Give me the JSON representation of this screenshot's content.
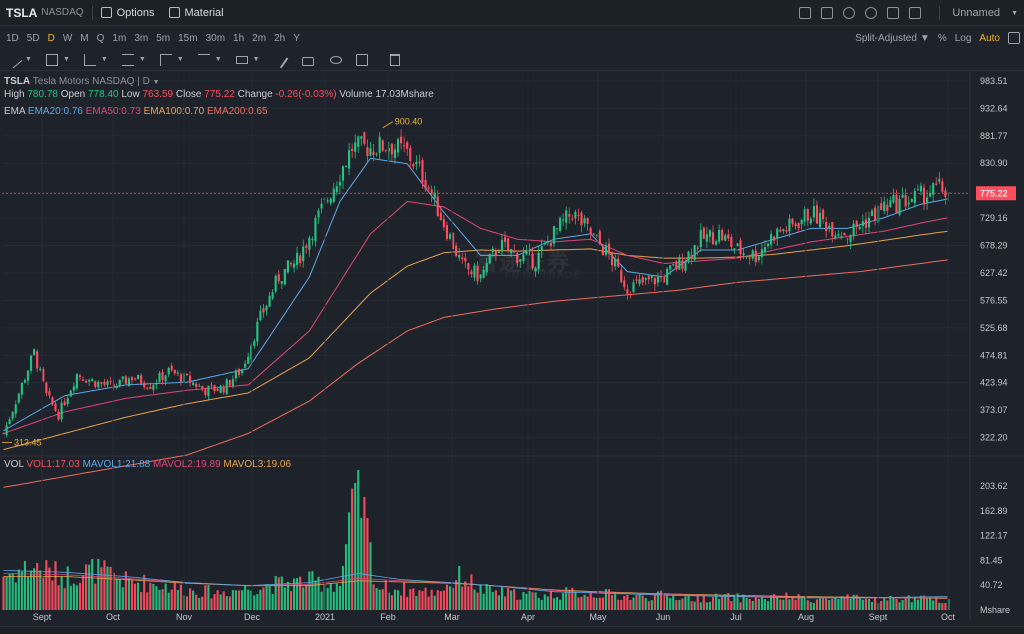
{
  "header": {
    "symbol": "TSLA",
    "exchange": "NASDAQ",
    "options_label": "Options",
    "material_label": "Material",
    "user_label": "Unnamed"
  },
  "periods": [
    "1D",
    "5D",
    "D",
    "W",
    "M",
    "Q",
    "1m",
    "3m",
    "5m",
    "15m",
    "30m",
    "1h",
    "2m",
    "2h",
    "Y"
  ],
  "active_period": "D",
  "period_right": {
    "adjust": "Split-Adjusted",
    "percent": "%",
    "log": "Log",
    "auto": "Auto"
  },
  "quote": {
    "title": "TSLA",
    "name": "Tesla Motors NASDAQ | D",
    "high_label": "High",
    "high": "780.78",
    "open_label": "Open",
    "open": "778.40",
    "low_label": "Low",
    "low": "763.59",
    "close_label": "Close",
    "close": "775.22",
    "change_label": "Change",
    "change": "-0.26(-0.03%)",
    "volume_label": "Volume",
    "volume": "17.03Mshare"
  },
  "ema": {
    "label": "EMA",
    "ema20": "EMA20:0.76",
    "ema50": "EMA50:0.73",
    "ema100": "EMA100:0.70",
    "ema200": "EMA200:0.65"
  },
  "vol": {
    "label": "VOL",
    "vol1": "VOL1:17.03",
    "mavol1": "MAVOL1:21.88",
    "mavol2": "MAVOL2:19.89",
    "mavol3": "MAVOL3:19.06"
  },
  "watermark": {
    "main": "富途证券",
    "sub": "FUTU TRADE"
  },
  "colors": {
    "up": "#26c281",
    "down": "#ff4d5e",
    "ema20": "#5aa9e6",
    "ema50": "#e0457b",
    "ema100": "#e8a34b",
    "ema200": "#ef6d5e",
    "accent": "#f0b429"
  },
  "chart_data": {
    "type": "candlestick",
    "price_axis_ticks": [
      "983.51",
      "932.64",
      "881.77",
      "830.90",
      "775.22",
      "729.16",
      "678.29",
      "627.42",
      "576.55",
      "525.68",
      "474.81",
      "423.94",
      "373.07",
      "322.20"
    ],
    "volume_axis_ticks": [
      "203.62",
      "162.89",
      "122.17",
      "81.45",
      "40.72",
      "Mshare"
    ],
    "x_ticks": [
      "Sept",
      "Oct",
      "Nov",
      "Dec",
      "2021",
      "Feb",
      "Mar",
      "Apr",
      "May",
      "Jun",
      "Jul",
      "Aug",
      "Sept",
      "Oct"
    ],
    "current_price": 775.22,
    "max_label": "900.40",
    "min_label": "313.45",
    "price_range": [
      290,
      1000
    ],
    "volume_range": [
      0,
      230
    ],
    "close_anchors": [
      [
        0,
        330
      ],
      [
        6,
        420
      ],
      [
        10,
        480
      ],
      [
        14,
        400
      ],
      [
        18,
        365
      ],
      [
        24,
        440
      ],
      [
        30,
        425
      ],
      [
        36,
        415
      ],
      [
        42,
        435
      ],
      [
        48,
        420
      ],
      [
        54,
        445
      ],
      [
        60,
        430
      ],
      [
        66,
        410
      ],
      [
        72,
        415
      ],
      [
        78,
        450
      ],
      [
        84,
        545
      ],
      [
        90,
        620
      ],
      [
        96,
        650
      ],
      [
        102,
        720
      ],
      [
        108,
        790
      ],
      [
        114,
        860
      ],
      [
        120,
        860
      ],
      [
        126,
        865
      ],
      [
        132,
        850
      ],
      [
        138,
        800
      ],
      [
        144,
        720
      ],
      [
        150,
        640
      ],
      [
        156,
        620
      ],
      [
        162,
        680
      ],
      [
        168,
        660
      ],
      [
        174,
        650
      ],
      [
        180,
        700
      ],
      [
        186,
        740
      ],
      [
        192,
        700
      ],
      [
        198,
        660
      ],
      [
        204,
        600
      ],
      [
        210,
        610
      ],
      [
        216,
        620
      ],
      [
        222,
        650
      ],
      [
        228,
        690
      ],
      [
        234,
        700
      ],
      [
        240,
        670
      ],
      [
        246,
        660
      ],
      [
        252,
        700
      ],
      [
        258,
        715
      ],
      [
        264,
        740
      ],
      [
        270,
        715
      ],
      [
        276,
        700
      ],
      [
        282,
        725
      ],
      [
        288,
        750
      ],
      [
        294,
        760
      ],
      [
        300,
        770
      ],
      [
        306,
        785
      ],
      [
        309,
        775.22
      ]
    ],
    "volume_anchors": [
      [
        0,
        60
      ],
      [
        10,
        75
      ],
      [
        20,
        58
      ],
      [
        30,
        70
      ],
      [
        40,
        50
      ],
      [
        50,
        45
      ],
      [
        60,
        35
      ],
      [
        70,
        30
      ],
      [
        80,
        38
      ],
      [
        90,
        45
      ],
      [
        100,
        50
      ],
      [
        110,
        45
      ],
      [
        116,
        220
      ],
      [
        122,
        40
      ],
      [
        132,
        35
      ],
      [
        140,
        30
      ],
      [
        146,
        45
      ],
      [
        150,
        60
      ],
      [
        156,
        35
      ],
      [
        166,
        28
      ],
      [
        176,
        25
      ],
      [
        186,
        30
      ],
      [
        196,
        28
      ],
      [
        206,
        22
      ],
      [
        216,
        25
      ],
      [
        226,
        20
      ],
      [
        236,
        22
      ],
      [
        246,
        20
      ],
      [
        256,
        22
      ],
      [
        266,
        18
      ],
      [
        276,
        20
      ],
      [
        286,
        18
      ],
      [
        296,
        20
      ],
      [
        309,
        17
      ]
    ],
    "ema_anchors": {
      "ema20": [
        [
          0,
          335
        ],
        [
          20,
          400
        ],
        [
          40,
          420
        ],
        [
          60,
          425
        ],
        [
          80,
          450
        ],
        [
          100,
          620
        ],
        [
          110,
          760
        ],
        [
          120,
          840
        ],
        [
          132,
          830
        ],
        [
          144,
          740
        ],
        [
          156,
          660
        ],
        [
          168,
          660
        ],
        [
          180,
          690
        ],
        [
          192,
          700
        ],
        [
          204,
          630
        ],
        [
          216,
          620
        ],
        [
          228,
          670
        ],
        [
          240,
          670
        ],
        [
          252,
          690
        ],
        [
          264,
          710
        ],
        [
          276,
          710
        ],
        [
          288,
          730
        ],
        [
          300,
          755
        ],
        [
          309,
          765
        ]
      ],
      "ema50": [
        [
          0,
          330
        ],
        [
          20,
          370
        ],
        [
          40,
          395
        ],
        [
          60,
          410
        ],
        [
          80,
          420
        ],
        [
          100,
          520
        ],
        [
          110,
          610
        ],
        [
          120,
          700
        ],
        [
          132,
          760
        ],
        [
          144,
          750
        ],
        [
          156,
          710
        ],
        [
          168,
          690
        ],
        [
          180,
          685
        ],
        [
          192,
          690
        ],
        [
          204,
          660
        ],
        [
          216,
          645
        ],
        [
          228,
          650
        ],
        [
          240,
          655
        ],
        [
          252,
          670
        ],
        [
          264,
          685
        ],
        [
          276,
          695
        ],
        [
          288,
          705
        ],
        [
          300,
          720
        ],
        [
          309,
          730
        ]
      ],
      "ema100": [
        [
          0,
          300
        ],
        [
          20,
          330
        ],
        [
          40,
          360
        ],
        [
          60,
          385
        ],
        [
          80,
          405
        ],
        [
          100,
          470
        ],
        [
          110,
          530
        ],
        [
          120,
          590
        ],
        [
          132,
          640
        ],
        [
          144,
          665
        ],
        [
          156,
          670
        ],
        [
          168,
          668
        ],
        [
          180,
          670
        ],
        [
          192,
          672
        ],
        [
          204,
          660
        ],
        [
          216,
          655
        ],
        [
          228,
          655
        ],
        [
          240,
          657
        ],
        [
          252,
          662
        ],
        [
          264,
          670
        ],
        [
          276,
          678
        ],
        [
          288,
          688
        ],
        [
          300,
          698
        ],
        [
          309,
          705
        ]
      ],
      "ema200": [
        [
          0,
          230
        ],
        [
          30,
          260
        ],
        [
          60,
          290
        ],
        [
          80,
          330
        ],
        [
          100,
          390
        ],
        [
          116,
          460
        ],
        [
          132,
          520
        ],
        [
          144,
          545
        ],
        [
          160,
          560
        ],
        [
          180,
          575
        ],
        [
          200,
          585
        ],
        [
          220,
          595
        ],
        [
          240,
          610
        ],
        [
          260,
          620
        ],
        [
          280,
          630
        ],
        [
          300,
          645
        ],
        [
          309,
          652
        ]
      ]
    },
    "mavol_anchors": {
      "mavol1": [
        [
          0,
          65
        ],
        [
          20,
          62
        ],
        [
          40,
          55
        ],
        [
          60,
          45
        ],
        [
          80,
          40
        ],
        [
          100,
          45
        ],
        [
          116,
          60
        ],
        [
          130,
          50
        ],
        [
          146,
          45
        ],
        [
          160,
          40
        ],
        [
          180,
          30
        ],
        [
          200,
          27
        ],
        [
          220,
          24
        ],
        [
          240,
          22
        ],
        [
          260,
          20
        ],
        [
          280,
          20
        ],
        [
          309,
          22
        ]
      ],
      "mavol2": [
        [
          0,
          60
        ],
        [
          20,
          58
        ],
        [
          40,
          52
        ],
        [
          60,
          45
        ],
        [
          80,
          40
        ],
        [
          100,
          42
        ],
        [
          116,
          52
        ],
        [
          130,
          48
        ],
        [
          146,
          45
        ],
        [
          160,
          40
        ],
        [
          180,
          32
        ],
        [
          200,
          28
        ],
        [
          220,
          25
        ],
        [
          240,
          23
        ],
        [
          260,
          21
        ],
        [
          280,
          20
        ],
        [
          309,
          20
        ]
      ],
      "mavol3": [
        [
          0,
          55
        ],
        [
          20,
          55
        ],
        [
          40,
          50
        ],
        [
          60,
          44
        ],
        [
          80,
          40
        ],
        [
          100,
          40
        ],
        [
          116,
          48
        ],
        [
          130,
          46
        ],
        [
          146,
          44
        ],
        [
          160,
          40
        ],
        [
          180,
          33
        ],
        [
          200,
          29
        ],
        [
          220,
          26
        ],
        [
          240,
          24
        ],
        [
          260,
          22
        ],
        [
          280,
          21
        ],
        [
          309,
          19
        ]
      ]
    }
  }
}
